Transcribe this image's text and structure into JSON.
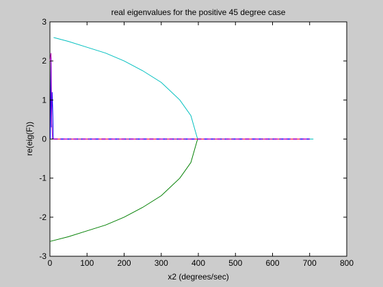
{
  "chart_data": {
    "type": "line",
    "title": "real eigenvalues for the positive 45 degree case",
    "xlabel": "x2 (degrees/sec)",
    "ylabel": "re(eig(F))",
    "xlim": [
      0,
      800
    ],
    "ylim": [
      -3,
      3
    ],
    "xticks": [
      "0",
      "100",
      "200",
      "300",
      "400",
      "500",
      "600",
      "700",
      "800"
    ],
    "yticks": [
      "3",
      "2",
      "1",
      "0",
      "-1",
      "-2",
      "-3"
    ],
    "grid": false,
    "series": [
      {
        "color": "#00bfbf",
        "style": "solid",
        "points": [
          [
            10,
            2.6
          ],
          [
            50,
            2.5
          ],
          [
            100,
            2.35
          ],
          [
            150,
            2.2
          ],
          [
            200,
            2.0
          ],
          [
            250,
            1.75
          ],
          [
            300,
            1.45
          ],
          [
            350,
            1.0
          ],
          [
            380,
            0.6
          ],
          [
            398,
            0.0
          ],
          [
            450,
            0.0
          ],
          [
            550,
            0.0
          ],
          [
            650,
            0.0
          ],
          [
            710,
            0.0
          ]
        ]
      },
      {
        "color": "#007f00",
        "style": "solid",
        "points": [
          [
            0,
            -2.62
          ],
          [
            50,
            -2.5
          ],
          [
            100,
            -2.35
          ],
          [
            150,
            -2.2
          ],
          [
            200,
            -2.0
          ],
          [
            250,
            -1.75
          ],
          [
            300,
            -1.45
          ],
          [
            350,
            -1.0
          ],
          [
            380,
            -0.6
          ],
          [
            398,
            0.0
          ]
        ]
      },
      {
        "color": "#0000ff",
        "style": "solid",
        "points": [
          [
            1,
            0.0
          ],
          [
            3,
            2.1
          ],
          [
            4,
            0.3
          ],
          [
            6,
            1.2
          ],
          [
            8,
            0.6
          ],
          [
            9,
            0.0
          ]
        ]
      },
      {
        "color": "#bf00bf",
        "style": "solid",
        "points": [
          [
            0,
            2.0
          ],
          [
            3,
            2.2
          ],
          [
            5,
            0.4
          ],
          [
            7,
            0.0
          ]
        ]
      },
      {
        "color": "#ff0000",
        "style": "solid",
        "points": [
          [
            0,
            0.0
          ],
          [
            700,
            0.0
          ]
        ]
      },
      {
        "color": "#0000ff",
        "style": "dashed",
        "points": [
          [
            10,
            0.0
          ],
          [
            700,
            0.0
          ]
        ]
      },
      {
        "color": "#bf00bf",
        "style": "dashdot",
        "points": [
          [
            10,
            0.0
          ],
          [
            700,
            0.0
          ]
        ]
      }
    ]
  }
}
